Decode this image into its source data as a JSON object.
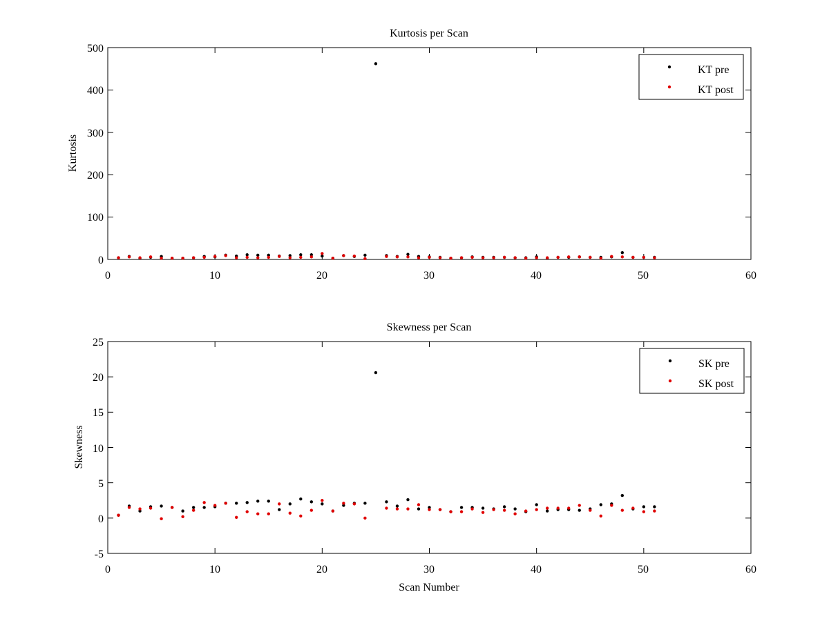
{
  "chart_data": [
    {
      "type": "scatter",
      "title": "Kurtosis per Scan",
      "xlabel": "",
      "ylabel": "Kurtosis",
      "xlim": [
        0,
        60
      ],
      "ylim": [
        0,
        500
      ],
      "xticks": [
        "0",
        "10",
        "20",
        "30",
        "40",
        "50",
        "60"
      ],
      "yticks": [
        "0",
        "100",
        "200",
        "300",
        "400",
        "500"
      ],
      "grid": false,
      "legend_position": "top-right",
      "x": [
        1,
        2,
        3,
        4,
        5,
        6,
        7,
        8,
        9,
        10,
        11,
        12,
        13,
        14,
        15,
        16,
        17,
        18,
        19,
        20,
        21,
        22,
        23,
        24,
        25,
        26,
        27,
        28,
        29,
        30,
        31,
        32,
        33,
        34,
        35,
        36,
        37,
        38,
        39,
        40,
        41,
        42,
        43,
        44,
        45,
        46,
        47,
        48,
        49,
        50,
        51
      ],
      "series": [
        {
          "name": "KT pre",
          "color": "#000000",
          "values": [
            4,
            7,
            3,
            5,
            7,
            3,
            3,
            4,
            7,
            6,
            10,
            8,
            11,
            10,
            10,
            8,
            9,
            11,
            11,
            8,
            3,
            9,
            7,
            10,
            462,
            9,
            7,
            12,
            7,
            6,
            5,
            3,
            4,
            6,
            5,
            5,
            5,
            4,
            4,
            6,
            3,
            5,
            5,
            6,
            5,
            5,
            6,
            16,
            5,
            5,
            5
          ]
        },
        {
          "name": "KT post",
          "color": "#e00000",
          "values": [
            4,
            6,
            4,
            6,
            3,
            3,
            3,
            4,
            5,
            7,
            9,
            4,
            5,
            4,
            5,
            7,
            4,
            5,
            6,
            14,
            3,
            9,
            8,
            2,
            null,
            7,
            6,
            6,
            4,
            5,
            4,
            3,
            4,
            5,
            4,
            4,
            5,
            4,
            3,
            4,
            4,
            5,
            6,
            6,
            5,
            3,
            7,
            6,
            5,
            5,
            4
          ]
        }
      ]
    },
    {
      "type": "scatter",
      "title": "Skewness per Scan",
      "xlabel": "Scan Number",
      "ylabel": "Skewness",
      "xlim": [
        0,
        60
      ],
      "ylim": [
        -5,
        25
      ],
      "xticks": [
        "0",
        "10",
        "20",
        "30",
        "40",
        "50",
        "60"
      ],
      "yticks": [
        "-5",
        "0",
        "5",
        "10",
        "15",
        "20",
        "25"
      ],
      "grid": false,
      "legend_position": "top-right",
      "x": [
        1,
        2,
        3,
        4,
        5,
        6,
        7,
        8,
        9,
        10,
        11,
        12,
        13,
        14,
        15,
        16,
        17,
        18,
        19,
        20,
        21,
        22,
        23,
        24,
        25,
        26,
        27,
        28,
        29,
        30,
        31,
        32,
        33,
        34,
        35,
        36,
        37,
        38,
        39,
        40,
        41,
        42,
        43,
        44,
        45,
        46,
        47,
        48,
        49,
        50,
        51
      ],
      "series": [
        {
          "name": "SK pre",
          "color": "#000000",
          "values": [
            0.4,
            1.7,
            1.0,
            1.6,
            1.7,
            1.5,
            1.0,
            1.5,
            1.5,
            1.6,
            2.1,
            2.1,
            2.2,
            2.4,
            2.4,
            1.2,
            2.0,
            2.7,
            2.3,
            2.0,
            1.0,
            1.8,
            2.1,
            2.1,
            20.6,
            2.3,
            1.7,
            2.6,
            1.3,
            1.5,
            1.2,
            0.9,
            1.5,
            1.5,
            1.4,
            1.3,
            1.6,
            1.3,
            0.9,
            1.9,
            1.0,
            1.2,
            1.2,
            1.1,
            1.3,
            1.9,
            2.0,
            3.2,
            1.3,
            1.6,
            1.6
          ]
        },
        {
          "name": "SK post",
          "color": "#e00000",
          "values": [
            0.4,
            1.5,
            1.3,
            1.4,
            -0.1,
            1.5,
            0.2,
            1.1,
            2.2,
            1.8,
            2.1,
            0.1,
            0.9,
            0.6,
            0.6,
            2.0,
            0.7,
            0.3,
            1.1,
            2.5,
            1.0,
            2.1,
            2.0,
            0.0,
            null,
            1.4,
            1.3,
            1.3,
            1.9,
            1.2,
            1.2,
            0.9,
            0.9,
            1.3,
            0.8,
            1.2,
            1.1,
            0.6,
            1.0,
            1.2,
            1.4,
            1.4,
            1.4,
            1.8,
            1.1,
            0.3,
            1.8,
            1.1,
            1.4,
            0.9,
            1.0
          ]
        }
      ]
    }
  ]
}
